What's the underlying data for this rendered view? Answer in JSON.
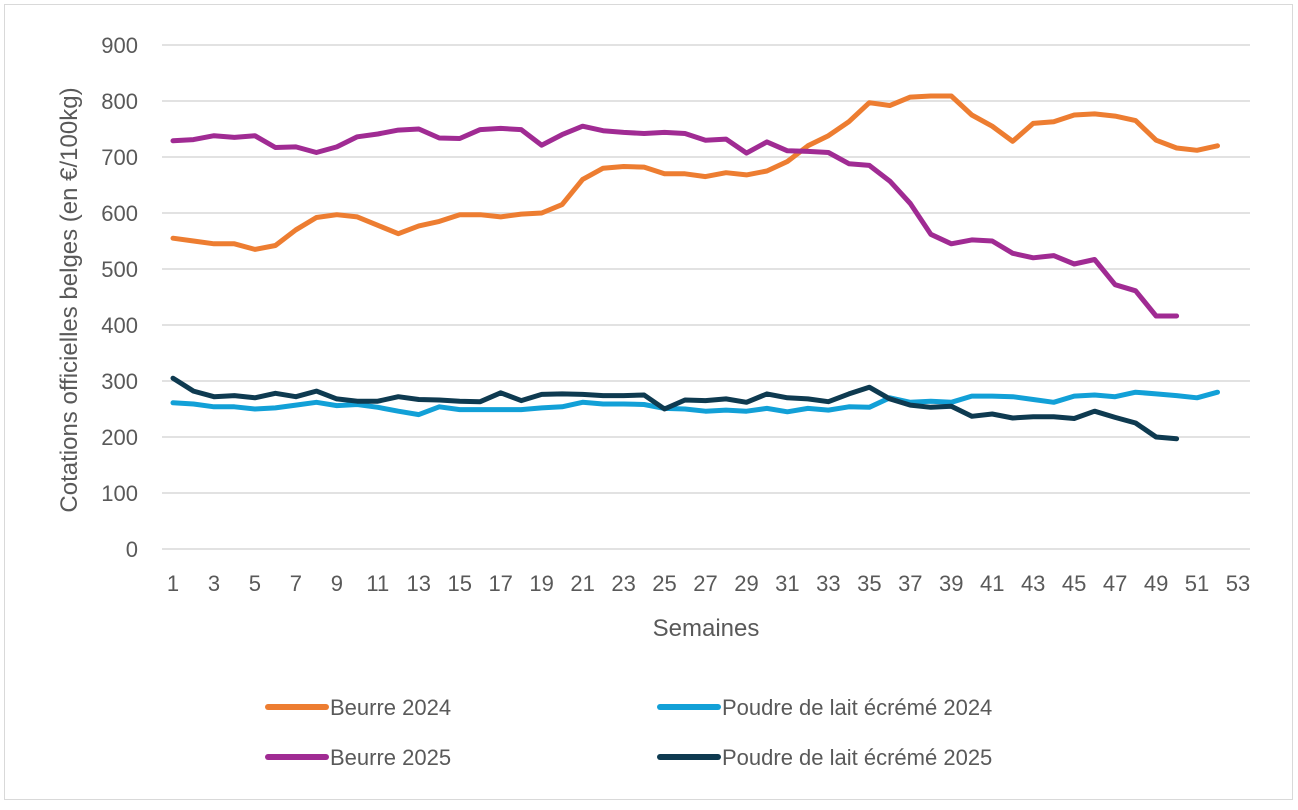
{
  "chart_data": {
    "type": "line",
    "title": "",
    "xlabel": "Semaines",
    "ylabel": "Cotations officielles belges (en €/100kg)",
    "ylim": [
      0,
      900
    ],
    "xlim": [
      1,
      53
    ],
    "yticks": [
      0,
      100,
      200,
      300,
      400,
      500,
      600,
      700,
      800,
      900
    ],
    "xticks": [
      1,
      3,
      5,
      7,
      9,
      11,
      13,
      15,
      17,
      19,
      21,
      23,
      25,
      27,
      29,
      31,
      33,
      35,
      37,
      39,
      41,
      43,
      45,
      47,
      49,
      51,
      53
    ],
    "grid": "horizontal",
    "legend_position": "bottom",
    "series": [
      {
        "name": "Beurre 2024",
        "color": "#ED7D31",
        "values": [
          555,
          550,
          545,
          545,
          535,
          542,
          570,
          592,
          597,
          593,
          578,
          563,
          577,
          585,
          597,
          597,
          593,
          598,
          600,
          615,
          660,
          680,
          683,
          682,
          670,
          670,
          665,
          672,
          668,
          675,
          692,
          720,
          738,
          763,
          797,
          792,
          807,
          809,
          809,
          775,
          755,
          728,
          760,
          763,
          775,
          777,
          773,
          765,
          730,
          716,
          712,
          720
        ]
      },
      {
        "name": "Poudre de lait écrémé 2024",
        "color": "#12A0D7",
        "values": [
          261,
          259,
          254,
          254,
          250,
          252,
          257,
          262,
          256,
          258,
          253,
          246,
          240,
          254,
          249,
          249,
          249,
          249,
          252,
          254,
          262,
          259,
          259,
          258,
          251,
          250,
          246,
          248,
          246,
          251,
          245,
          251,
          248,
          254,
          253,
          270,
          262,
          264,
          262,
          273,
          273,
          272,
          267,
          262,
          273,
          275,
          272,
          280,
          277,
          274,
          270,
          280
        ]
      },
      {
        "name": "Beurre 2025",
        "color": "#A02B93",
        "values": [
          729,
          731,
          738,
          735,
          738,
          717,
          718,
          708,
          718,
          736,
          741,
          748,
          750,
          734,
          733,
          749,
          751,
          749,
          721,
          740,
          755,
          747,
          744,
          742,
          744,
          742,
          730,
          732,
          707,
          727,
          711,
          710,
          708,
          688,
          685,
          657,
          617,
          562,
          545,
          552,
          550,
          528,
          520,
          524,
          509,
          517,
          472,
          461,
          416,
          416
        ]
      },
      {
        "name": "Poudre de lait écrémé 2025",
        "color": "#0E3A50",
        "values": [
          305,
          282,
          272,
          274,
          270,
          278,
          272,
          282,
          268,
          264,
          264,
          272,
          267,
          266,
          264,
          263,
          279,
          265,
          276,
          277,
          276,
          274,
          274,
          275,
          250,
          266,
          265,
          268,
          262,
          277,
          270,
          268,
          263,
          277,
          289,
          268,
          257,
          253,
          255,
          237,
          241,
          234,
          236,
          236,
          233,
          246,
          235,
          225,
          200,
          197
        ]
      }
    ]
  }
}
